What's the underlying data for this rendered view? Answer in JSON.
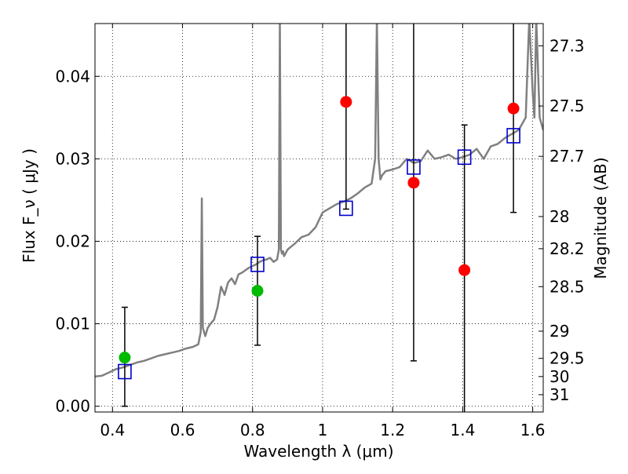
{
  "chart_data": {
    "type": "scatter",
    "title": "",
    "xlabel": "Wavelength  λ (μm)",
    "ylabel": "Flux  F_ν  ( μJy )",
    "y2label": "Magnitude (AB)",
    "xlim": [
      0.35,
      1.63
    ],
    "ylim": [
      -0.0007,
      0.0464
    ],
    "x_ticks": [
      0.4,
      0.6,
      0.8,
      1.0,
      1.2,
      1.4,
      1.6
    ],
    "x_tick_labels": [
      "0.4",
      "0.6",
      "0.8",
      "1",
      "1.2",
      "1.4",
      "1.6"
    ],
    "y_ticks": [
      0.0,
      0.01,
      0.02,
      0.03,
      0.04
    ],
    "y_tick_labels": [
      "0.00",
      "0.01",
      "0.02",
      "0.03",
      "0.04"
    ],
    "y2_ticks": [
      {
        "label": "27.3",
        "flux": 0.0437
      },
      {
        "label": "27.5",
        "flux": 0.0364
      },
      {
        "label": "27.7",
        "flux": 0.0303
      },
      {
        "label": "28",
        "flux": 0.023
      },
      {
        "label": "28.2",
        "flux": 0.0191
      },
      {
        "label": "28.5",
        "flux": 0.0145
      },
      {
        "label": "29",
        "flux": 0.0091
      },
      {
        "label": "29.5",
        "flux": 0.0058
      },
      {
        "label": "30",
        "flux": 0.0036
      },
      {
        "label": "31",
        "flux": 0.0014
      }
    ],
    "grid": true,
    "colors": {
      "spectrum": "#808080",
      "model_box": "#0000cc",
      "green_point": "#00bb00",
      "red_point": "#ff0000",
      "errorbar": "#000000"
    },
    "spectrum": {
      "x": [
        0.35,
        0.37,
        0.39,
        0.41,
        0.43,
        0.45,
        0.47,
        0.49,
        0.51,
        0.53,
        0.55,
        0.57,
        0.59,
        0.61,
        0.63,
        0.645,
        0.652,
        0.655,
        0.658,
        0.665,
        0.672,
        0.68,
        0.69,
        0.7,
        0.71,
        0.72,
        0.73,
        0.74,
        0.75,
        0.76,
        0.77,
        0.78,
        0.79,
        0.8,
        0.81,
        0.82,
        0.83,
        0.84,
        0.85,
        0.86,
        0.87,
        0.875,
        0.878,
        0.881,
        0.884,
        0.887,
        0.89,
        0.9,
        0.92,
        0.94,
        0.96,
        0.98,
        1.0,
        1.02,
        1.04,
        1.06,
        1.08,
        1.1,
        1.12,
        1.14,
        1.15,
        1.155,
        1.16,
        1.165,
        1.17,
        1.18,
        1.2,
        1.22,
        1.24,
        1.26,
        1.28,
        1.3,
        1.32,
        1.34,
        1.36,
        1.38,
        1.4,
        1.42,
        1.44,
        1.46,
        1.48,
        1.5,
        1.52,
        1.54,
        1.56,
        1.58,
        1.59,
        1.6,
        1.605,
        1.61,
        1.62,
        1.63
      ],
      "y": [
        0.0036,
        0.0037,
        0.0041,
        0.0045,
        0.0047,
        0.005,
        0.0053,
        0.0055,
        0.0058,
        0.0061,
        0.0063,
        0.0065,
        0.0067,
        0.007,
        0.0072,
        0.0075,
        0.009,
        0.0252,
        0.0095,
        0.0085,
        0.0095,
        0.01,
        0.0105,
        0.012,
        0.0145,
        0.0135,
        0.015,
        0.0155,
        0.0148,
        0.016,
        0.0162,
        0.0165,
        0.0168,
        0.017,
        0.0172,
        0.0175,
        0.0177,
        0.0178,
        0.018,
        0.0175,
        0.0178,
        0.019,
        0.047,
        0.019,
        0.0185,
        0.0188,
        0.0182,
        0.019,
        0.0197,
        0.0205,
        0.0208,
        0.0217,
        0.0235,
        0.024,
        0.0245,
        0.0248,
        0.0252,
        0.0258,
        0.0265,
        0.027,
        0.03,
        0.047,
        0.03,
        0.0275,
        0.028,
        0.0285,
        0.0287,
        0.029,
        0.03,
        0.0295,
        0.0297,
        0.031,
        0.03,
        0.0302,
        0.0305,
        0.03,
        0.0302,
        0.0305,
        0.0312,
        0.03,
        0.0315,
        0.0318,
        0.0325,
        0.033,
        0.0335,
        0.035,
        0.047,
        0.038,
        0.035,
        0.047,
        0.035,
        0.0335
      ]
    },
    "model_boxes": [
      {
        "x": 0.435,
        "y": 0.0042
      },
      {
        "x": 0.814,
        "y": 0.0172
      },
      {
        "x": 1.067,
        "y": 0.024
      },
      {
        "x": 1.26,
        "y": 0.029
      },
      {
        "x": 1.405,
        "y": 0.0302
      },
      {
        "x": 1.545,
        "y": 0.0328
      }
    ],
    "observed_points": [
      {
        "x": 0.435,
        "y": 0.0059,
        "err_low": 0.0,
        "err_high": 0.012,
        "color": "green"
      },
      {
        "x": 0.814,
        "y": 0.014,
        "err_low": 0.0074,
        "err_high": 0.0206,
        "color": "green"
      },
      {
        "x": 1.067,
        "y": 0.0369,
        "err_low": 0.0239,
        "err_high": 0.047,
        "color": "red"
      },
      {
        "x": 1.26,
        "y": 0.0271,
        "err_low": 0.0055,
        "err_high": 0.047,
        "color": "red"
      },
      {
        "x": 1.405,
        "y": 0.0165,
        "err_low": -0.001,
        "err_high": 0.0341,
        "color": "red"
      },
      {
        "x": 1.545,
        "y": 0.0361,
        "err_low": 0.0235,
        "err_high": 0.047,
        "color": "red"
      }
    ]
  }
}
